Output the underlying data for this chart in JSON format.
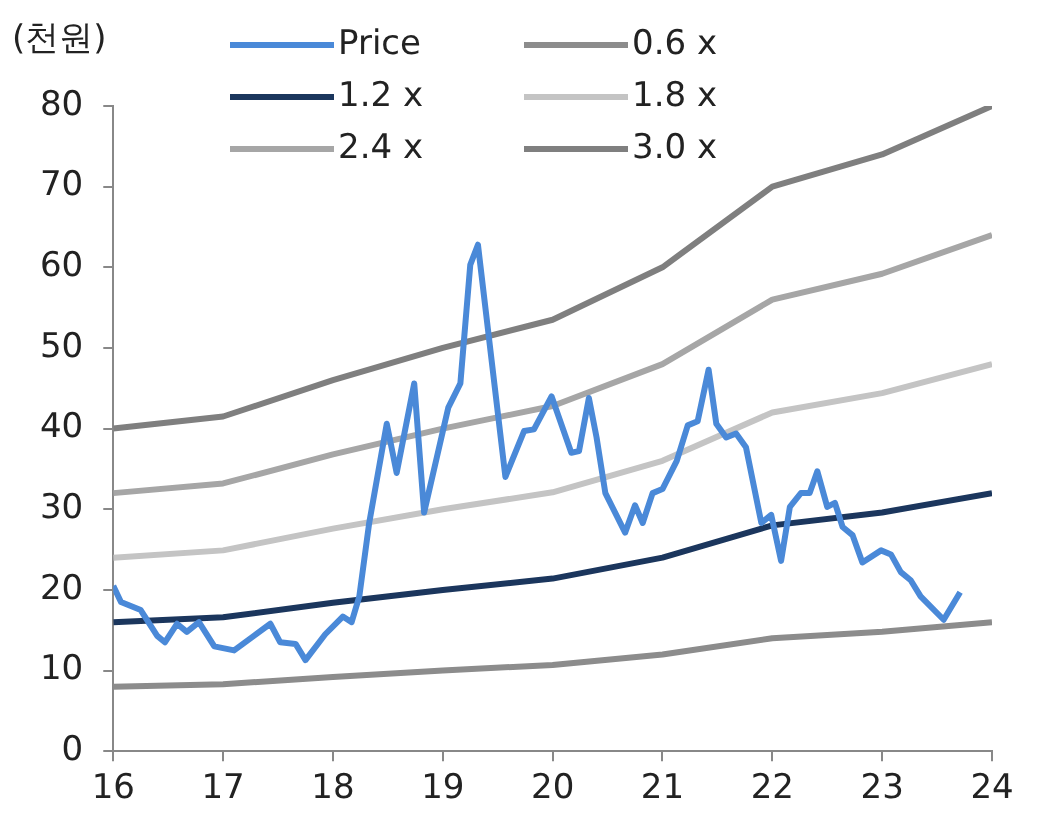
{
  "chart_data": {
    "type": "line",
    "ylabel": "(천원)",
    "xlim": [
      16,
      24
    ],
    "xticks": [
      16,
      17,
      18,
      19,
      20,
      21,
      22,
      23,
      24
    ],
    "ylim": [
      0,
      80
    ],
    "yticks": [
      0,
      10,
      20,
      30,
      40,
      50,
      60,
      70,
      80
    ],
    "grid": false,
    "legend": "top left",
    "marker": "none",
    "line_style": "solid",
    "series": [
      {
        "name": "Price",
        "color": "#4a89d8",
        "x": [
          16.0,
          16.07,
          16.25,
          16.4,
          16.47,
          16.58,
          16.67,
          16.78,
          16.92,
          17.1,
          17.28,
          17.43,
          17.52,
          17.66,
          17.75,
          17.93,
          18.09,
          18.17,
          18.24,
          18.33,
          18.49,
          18.58,
          18.74,
          18.83,
          19.05,
          19.16,
          19.25,
          19.32,
          19.57,
          19.74,
          19.83,
          19.99,
          20.17,
          20.24,
          20.33,
          20.4,
          20.48,
          20.66,
          20.75,
          20.82,
          20.91,
          21.0,
          21.13,
          21.23,
          21.32,
          21.42,
          21.49,
          21.58,
          21.67,
          21.76,
          21.9,
          21.99,
          22.08,
          22.16,
          22.26,
          22.34,
          22.41,
          22.5,
          22.57,
          22.64,
          22.73,
          22.82,
          22.99,
          23.08,
          23.17,
          23.26,
          23.35,
          23.56,
          23.71
        ],
        "values": [
          20.5,
          18.5,
          17.5,
          14.3,
          13.5,
          15.8,
          14.8,
          16,
          13,
          12.5,
          14.3,
          15.8,
          13.5,
          13.3,
          11.3,
          14.5,
          16.7,
          16,
          19.2,
          28.3,
          40.6,
          34.5,
          45.6,
          29.6,
          42.6,
          45.6,
          60.3,
          62.8,
          34,
          39.7,
          39.9,
          44,
          37,
          37.2,
          43.8,
          38.9,
          32,
          27.1,
          30.5,
          28.3,
          32,
          32.5,
          36,
          40.4,
          40.9,
          47.3,
          40.6,
          38.9,
          39.4,
          37.7,
          28.3,
          29.3,
          23.6,
          30.3,
          32,
          32,
          34.7,
          30.3,
          30.8,
          27.8,
          26.8,
          23.4,
          24.9,
          24.4,
          22.2,
          21.2,
          19.2,
          16.3,
          19.7
        ]
      },
      {
        "name": "0.6 x",
        "color": "#8c8c8c",
        "x": [
          16,
          17,
          18,
          19,
          20,
          21,
          22,
          23,
          24
        ],
        "values": [
          8,
          8.3,
          9.2,
          10,
          10.7,
          12,
          14,
          14.8,
          16
        ]
      },
      {
        "name": "1.2 x",
        "color": "#1b365d",
        "x": [
          16,
          17,
          18,
          19,
          20,
          21,
          22,
          23,
          24
        ],
        "values": [
          16,
          16.6,
          18.4,
          20,
          21.4,
          24,
          28,
          29.6,
          32
        ]
      },
      {
        "name": "1.8 x",
        "color": "#c4c4c4",
        "x": [
          16,
          17,
          18,
          19,
          20,
          21,
          22,
          23,
          24
        ],
        "values": [
          24,
          24.9,
          27.6,
          30,
          32.1,
          36,
          42,
          44.4,
          48
        ]
      },
      {
        "name": "2.4 x",
        "color": "#a6a6a6",
        "x": [
          16,
          17,
          18,
          19,
          20,
          21,
          22,
          23,
          24
        ],
        "values": [
          32,
          33.2,
          36.8,
          40,
          42.8,
          48,
          56,
          59.2,
          64
        ]
      },
      {
        "name": "3.0 x",
        "color": "#7f7f7f",
        "x": [
          16,
          17,
          18,
          19,
          20,
          21,
          22,
          23,
          24
        ],
        "values": [
          40,
          41.5,
          46,
          50,
          53.5,
          60,
          70,
          74,
          80
        ]
      }
    ]
  }
}
